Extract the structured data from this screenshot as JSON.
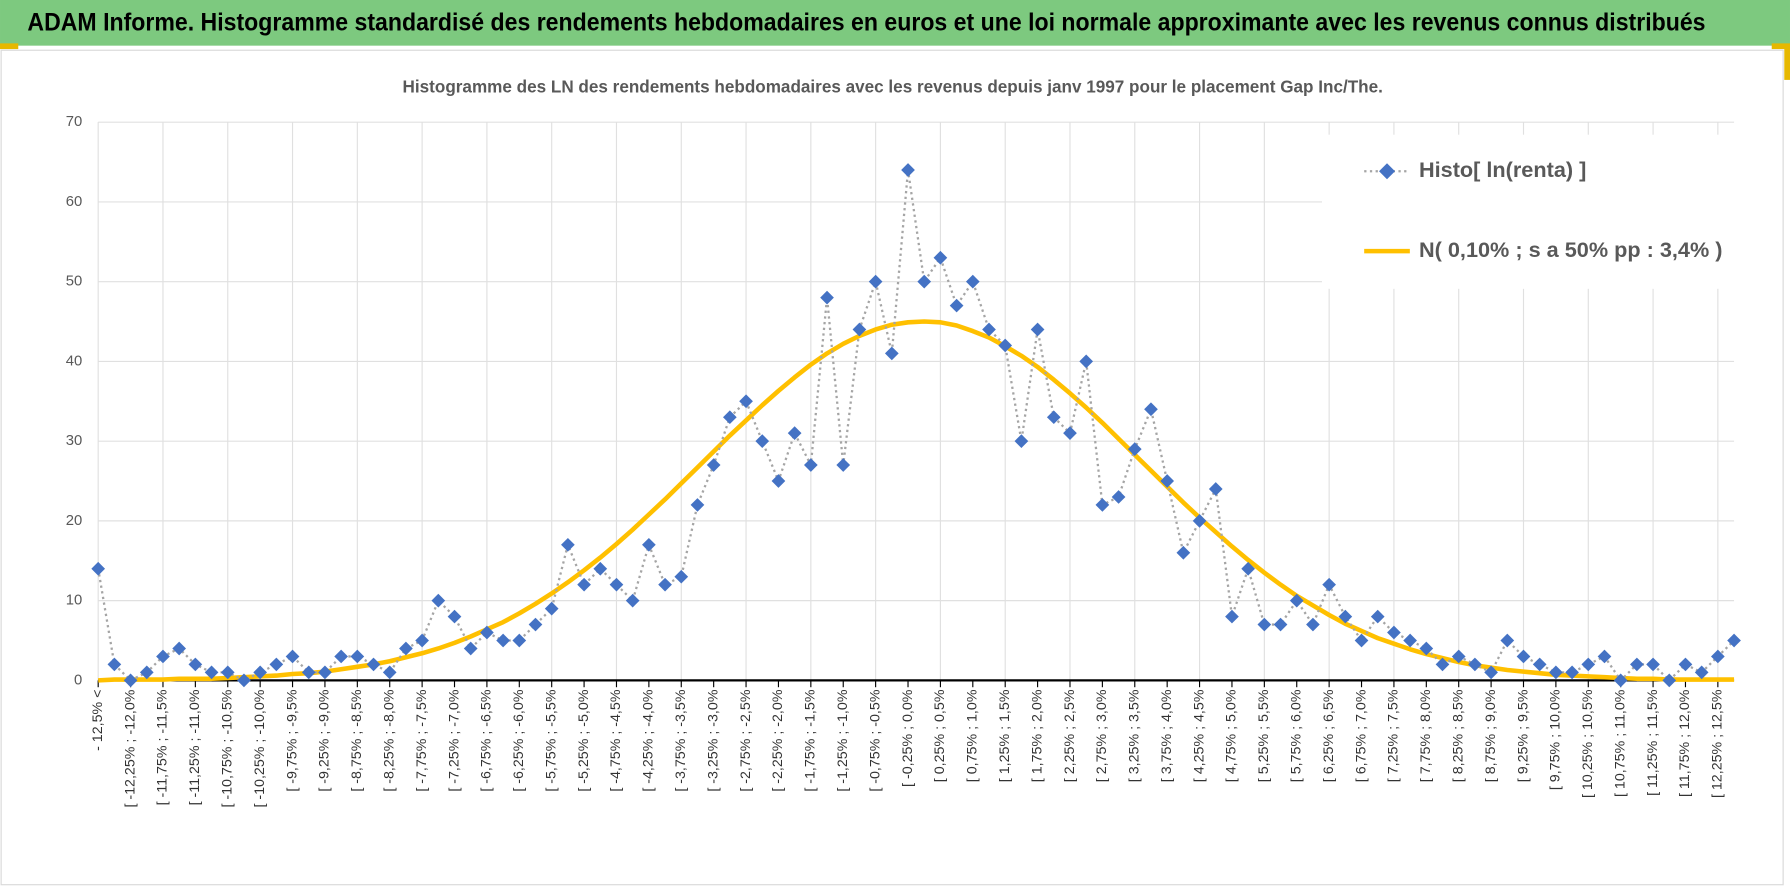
{
  "header": {
    "title": "ADAM Informe. Histogramme standardisé des rendements hebdomadaires en euros et une loi normale approximante avec les revenus connus distribués"
  },
  "chart_data": {
    "type": "line",
    "title": "Histogramme des LN des rendements hebdomadaires avec les revenus depuis janv 1997 pour le placement Gap Inc/The.",
    "categories": [
      "- 12,5% <",
      null,
      "[ -12,25% ; -12,0%",
      null,
      "[ -11,75% ; -11,5%",
      null,
      "[ -11,25% ; -11,0%",
      null,
      "[ -10,75% ; -10,5%",
      null,
      "[ -10,25% ; -10,0%",
      null,
      "[ -9,75% ; -9,5%",
      null,
      "[ -9,25% ; -9,0%",
      null,
      "[ -8,75% ; -8,5%",
      null,
      "[ -8,25% ; -8,0%",
      null,
      "[ -7,75% ; -7,5%",
      null,
      "[ -7,25% ; -7,0%",
      null,
      "[ -6,75% ; -6,5%",
      null,
      "[ -6,25% ; -6,0%",
      null,
      "[ -5,75% ; -5,5%",
      null,
      "[ -5,25% ; -5,0%",
      null,
      "[ -4,75% ; -4,5%",
      null,
      "[ -4,25% ; -4,0%",
      null,
      "[ -3,75% ; -3,5%",
      null,
      "[ -3,25% ; -3,0%",
      null,
      "[ -2,75% ; -2,5%",
      null,
      "[ -2,25% ; -2,0%",
      null,
      "[ -1,75% ; -1,5%",
      null,
      "[ -1,25% ; -1,0%",
      null,
      "[ -0,75% ; -0,5%",
      null,
      "[ -0,25% ; 0,0%",
      null,
      "[ 0,25% ; 0,5%",
      null,
      "[ 0,75% ; 1,0%",
      null,
      "[ 1,25% ; 1,5%",
      null,
      "[ 1,75% ; 2,0%",
      null,
      "[ 2,25% ; 2,5%",
      null,
      "[ 2,75% ; 3,0%",
      null,
      "[ 3,25% ; 3,5%",
      null,
      "[ 3,75% ; 4,0%",
      null,
      "[ 4,25% ; 4,5%",
      null,
      "[ 4,75% ; 5,0%",
      null,
      "[ 5,25% ; 5,5%",
      null,
      "[ 5,75% ; 6,0%",
      null,
      "[ 6,25% ; 6,5%",
      null,
      "[ 6,75% ; 7,0%",
      null,
      "[ 7,25% ; 7,5%",
      null,
      "[ 7,75% ; 8,0%",
      null,
      "[ 8,25% ; 8,5%",
      null,
      "[ 8,75% ; 9,0%",
      null,
      "[ 9,25% ; 9,5%",
      null,
      "[ 9,75% ; 10,0%",
      null,
      "[ 10,25% ; 10,5%",
      null,
      "[ 10,75% ; 11,0%",
      null,
      "[ 11,25% ; 11,5%",
      null,
      "[ 11,75% ; 12,0%",
      null,
      "[ 12,25% ; 12,5%",
      null
    ],
    "series": [
      {
        "name": "Histo[ ln(renta) ]",
        "color": "#4472c4",
        "line_color": "#a5a5a5",
        "line_style": "dotted",
        "marker": "diamond",
        "values": [
          14,
          2,
          0,
          1,
          3,
          4,
          2,
          1,
          1,
          0,
          1,
          2,
          3,
          1,
          1,
          3,
          3,
          2,
          1,
          4,
          5,
          10,
          8,
          4,
          6,
          5,
          5,
          7,
          9,
          17,
          12,
          14,
          12,
          10,
          17,
          12,
          13,
          22,
          27,
          33,
          35,
          30,
          25,
          31,
          27,
          48,
          27,
          44,
          50,
          41,
          64,
          50,
          53,
          47,
          50,
          44,
          42,
          30,
          44,
          33,
          31,
          40,
          22,
          23,
          29,
          34,
          25,
          16,
          20,
          24,
          8,
          14,
          7,
          7,
          10,
          7,
          12,
          8,
          5,
          8,
          6,
          5,
          4,
          2,
          3,
          2,
          1,
          5,
          3,
          2,
          1,
          1,
          2,
          3,
          0,
          2,
          2,
          0,
          2,
          1,
          3,
          5
        ]
      },
      {
        "name": "N( 0,10% ; s a 50% pp : 3,4% )",
        "color": "#ffc000",
        "line_color": "#ffc000",
        "line_style": "solid",
        "marker": "none",
        "values": [
          0.0,
          0.1,
          0.1,
          0.1,
          0.1,
          0.2,
          0.2,
          0.2,
          0.3,
          0.4,
          0.5,
          0.6,
          0.8,
          0.9,
          1.1,
          1.4,
          1.7,
          2.0,
          2.4,
          2.9,
          3.4,
          4.0,
          4.7,
          5.5,
          6.4,
          7.3,
          8.4,
          9.6,
          10.9,
          12.3,
          13.8,
          15.4,
          17.1,
          18.9,
          20.8,
          22.7,
          24.7,
          26.7,
          28.7,
          30.7,
          32.6,
          34.5,
          36.3,
          38.0,
          39.6,
          41.0,
          42.2,
          43.2,
          44.0,
          44.6,
          44.9,
          45.0,
          44.9,
          44.5,
          43.8,
          43.0,
          41.9,
          40.7,
          39.3,
          37.7,
          36.0,
          34.2,
          32.3,
          30.3,
          28.3,
          26.3,
          24.3,
          22.3,
          20.4,
          18.6,
          16.8,
          15.1,
          13.5,
          12.0,
          10.6,
          9.4,
          8.2,
          7.1,
          6.2,
          5.3,
          4.6,
          3.9,
          3.3,
          2.8,
          2.3,
          1.9,
          1.6,
          1.3,
          1.1,
          0.9,
          0.7,
          0.6,
          0.5,
          0.4,
          0.3,
          0.2,
          0.2,
          0.1,
          0.1,
          0.1,
          0.1,
          0.1
        ]
      }
    ],
    "ylim": [
      0,
      70
    ],
    "yticks": [
      0,
      10,
      20,
      30,
      40,
      50,
      60,
      70
    ],
    "grid": true,
    "legend": "top-right"
  }
}
